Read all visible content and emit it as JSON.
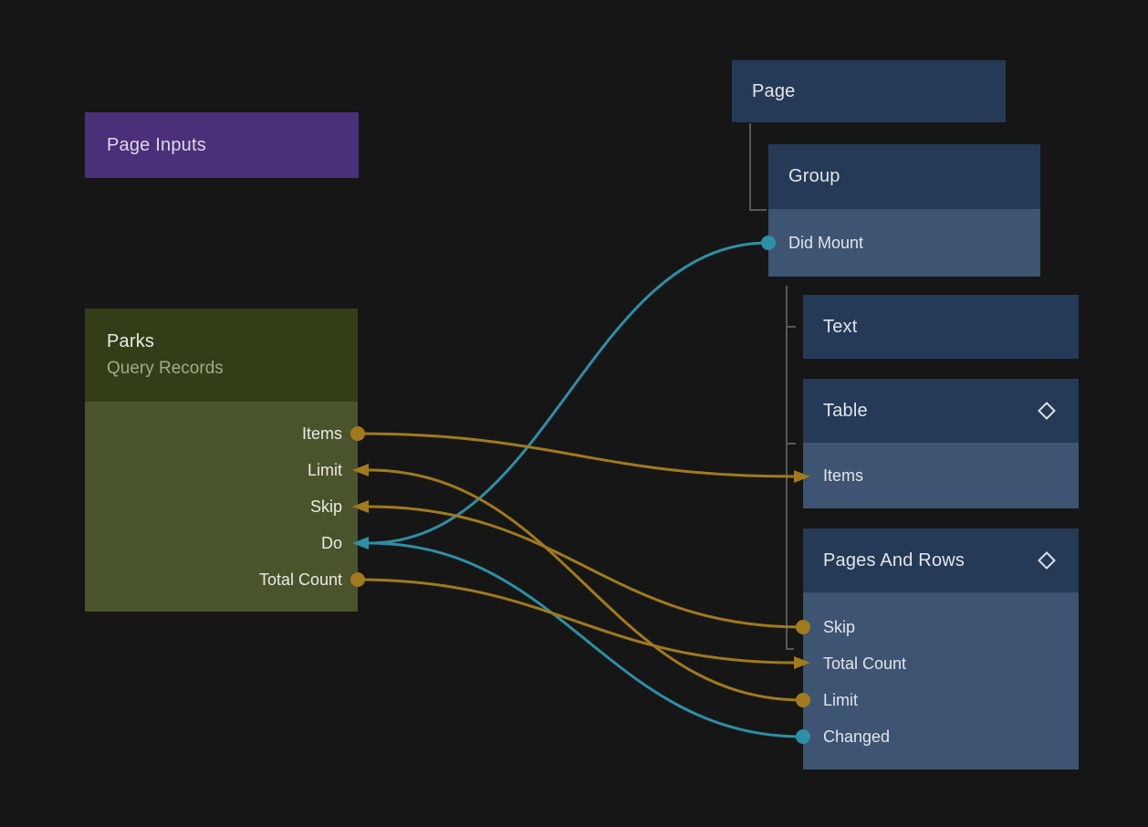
{
  "editor": {
    "type": "node-graph",
    "background": "#161616"
  },
  "palette": {
    "purple_node": "#4a3078",
    "olive_header": "#333e19",
    "olive_body": "#4a542c",
    "navy_header": "#243a57",
    "navy_row": "#3d5472",
    "wire_orange": "#a07a1c",
    "wire_teal": "#2d8fa5",
    "tree_line": "#58585a",
    "icon_stroke": "#dfe3ea"
  },
  "nodes": {
    "page_inputs": {
      "title": "Page Inputs"
    },
    "parks": {
      "title": "Parks",
      "subtitle": "Query Records",
      "ports": [
        "Items",
        "Limit",
        "Skip",
        "Do",
        "Total Count"
      ]
    },
    "page": {
      "title": "Page"
    },
    "group": {
      "title": "Group",
      "ports": [
        "Did Mount"
      ]
    },
    "text": {
      "title": "Text"
    },
    "table": {
      "title": "Table",
      "header_icon": "diamond",
      "ports": [
        "Items"
      ]
    },
    "pages_and_rows": {
      "title": "Pages And Rows",
      "header_icon": "diamond",
      "ports": [
        "Skip",
        "Total Count",
        "Limit",
        "Changed"
      ]
    }
  },
  "connections": [
    {
      "from": "group.didmount",
      "to": "parks.do",
      "color": "teal"
    },
    {
      "from": "par.changed",
      "to": "parks.do",
      "color": "teal"
    },
    {
      "from": "parks.items",
      "to": "table.items",
      "color": "orange"
    },
    {
      "from": "par.skip",
      "to": "parks.skip",
      "color": "orange"
    },
    {
      "from": "par.limit",
      "to": "parks.limit",
      "color": "orange"
    },
    {
      "from": "parks.totalcount",
      "to": "par.totalcount",
      "color": "orange"
    }
  ]
}
